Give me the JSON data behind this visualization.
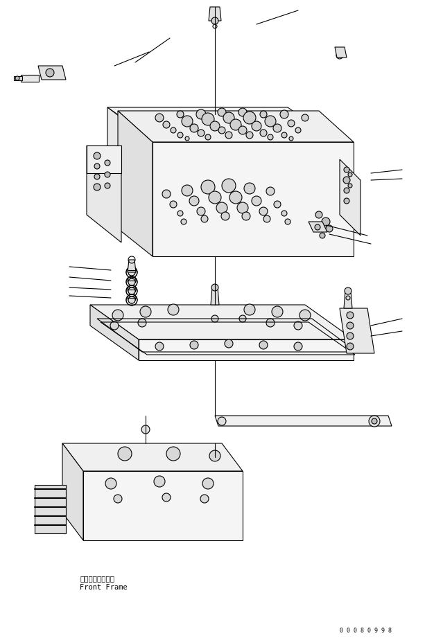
{
  "background_color": "#ffffff",
  "line_color": "#000000",
  "line_width": 0.8,
  "label_japanese": "フロントフレーム",
  "label_english": "Front Frame",
  "serial_number": "0 0 0 8 0 9 9 8",
  "fig_width": 6.39,
  "fig_height": 9.21,
  "dpi": 100
}
